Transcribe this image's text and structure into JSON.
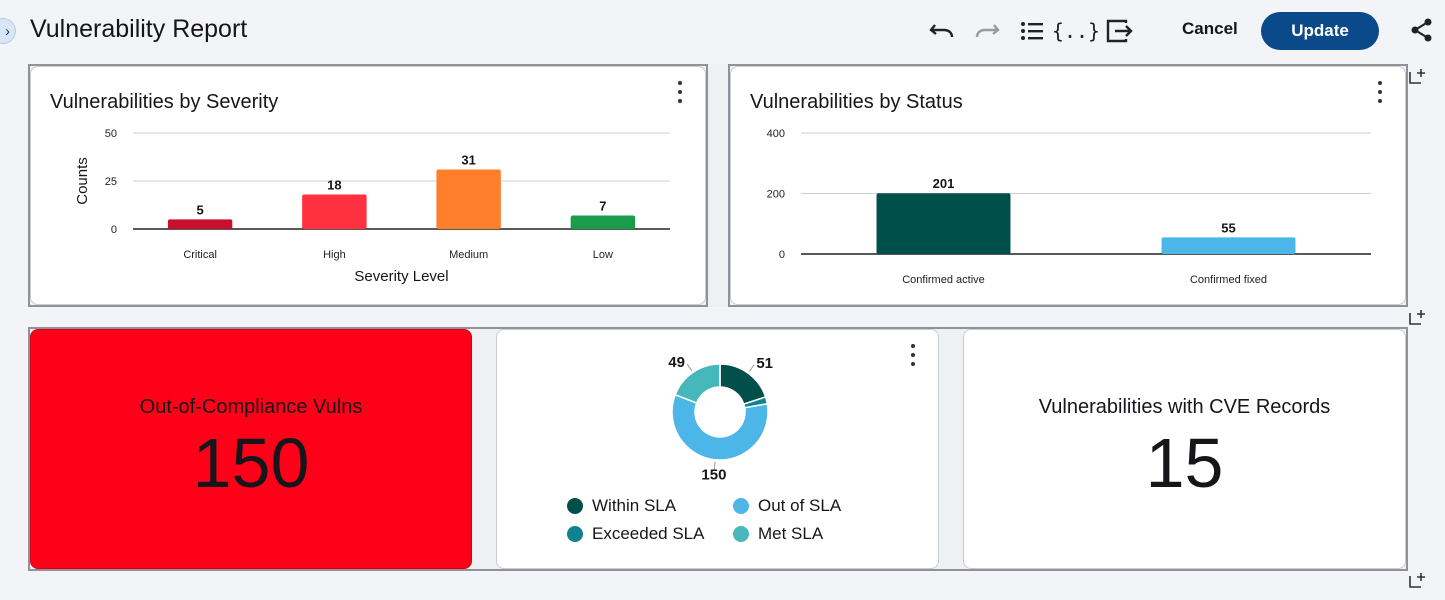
{
  "header": {
    "title": "Vulnerability Report",
    "cancel_label": "Cancel",
    "update_label": "Update"
  },
  "icons": {
    "sidebar_toggle": "chevron-right-icon",
    "undo": "undo-icon",
    "redo": "redo-icon",
    "list": "list-icon",
    "json": "json-braces-icon",
    "exit": "exit-icon",
    "share": "share-icon",
    "add_widget": "add-widget-icon",
    "more": "kebab-menu-icon"
  },
  "colors": {
    "accent": "#0b4a8a",
    "alert_bg": "#ff0019"
  },
  "severity_card": {
    "title": "Vulnerabilities by Severity",
    "chart_data": {
      "type": "bar",
      "categories": [
        "Critical",
        "High",
        "Medium",
        "Low"
      ],
      "values": [
        5,
        18,
        31,
        7
      ],
      "colors": [
        "#c8102e",
        "#ff3040",
        "#ff7f2a",
        "#1a9c4a"
      ],
      "xlabel": "Severity Level",
      "ylabel": "Counts",
      "ylim": [
        0,
        50
      ],
      "yticks": [
        0,
        25,
        50
      ],
      "grid": true
    }
  },
  "status_card": {
    "title": "Vulnerabilities by Status",
    "chart_data": {
      "type": "bar",
      "categories": [
        "Confirmed active",
        "Confirmed fixed"
      ],
      "values": [
        201,
        55
      ],
      "colors": [
        "#004f4a",
        "#4cb6e8"
      ],
      "ylim": [
        0,
        400
      ],
      "yticks": [
        0,
        200,
        400
      ],
      "grid": true
    }
  },
  "compliance_card": {
    "label": "Out-of-Compliance Vulns",
    "value": "150"
  },
  "sla_card": {
    "chart_data": {
      "type": "pie",
      "labels": [
        "Within SLA",
        "Exceeded SLA",
        "Out of SLA",
        "Met SLA"
      ],
      "values": [
        51,
        6,
        150,
        49
      ],
      "display": [
        "51",
        "",
        "150",
        "49"
      ],
      "colors": [
        "#004f4a",
        "#0f8190",
        "#4cb6e8",
        "#46b8bc"
      ]
    },
    "legend": [
      {
        "label": "Within SLA",
        "color": "#004f4a"
      },
      {
        "label": "Out of SLA",
        "color": "#4cb6e8"
      },
      {
        "label": "Exceeded SLA",
        "color": "#0f8190"
      },
      {
        "label": "Met SLA",
        "color": "#46b8bc"
      }
    ]
  },
  "cve_card": {
    "label": "Vulnerabilities with CVE Records",
    "value": "15"
  }
}
